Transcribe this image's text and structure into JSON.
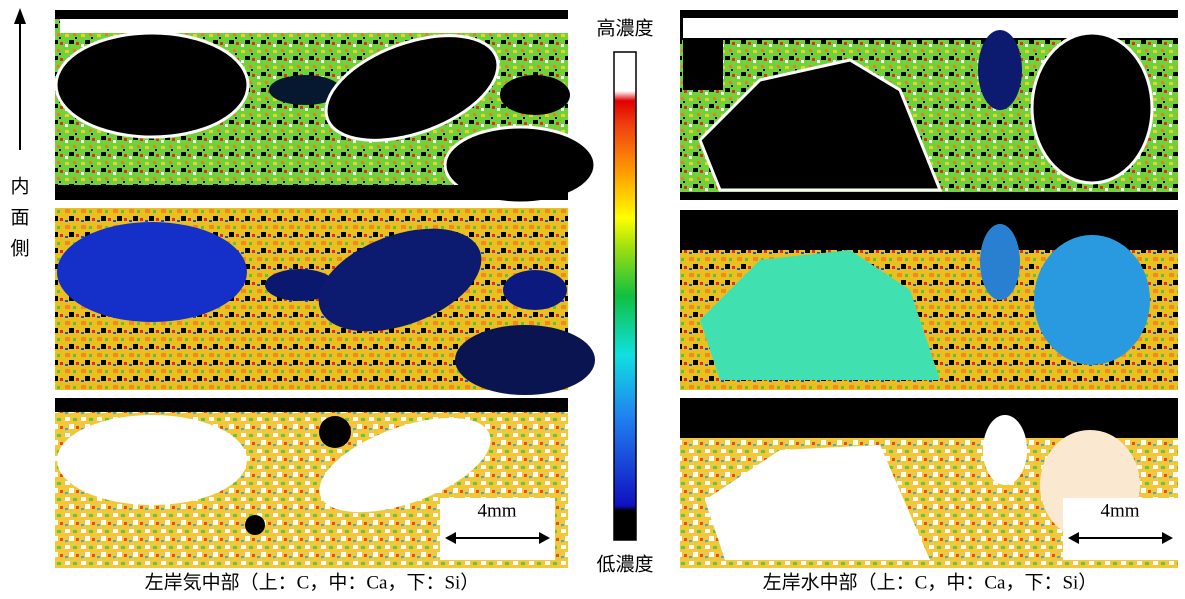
{
  "side_label": [
    "内",
    "面",
    "側"
  ],
  "color_scale": {
    "high": "高濃度",
    "low": "低濃度"
  },
  "left_figure": {
    "caption": "左岸気中部（上：C，中：Ca，下：Si）",
    "scale_bar": "4mm"
  },
  "right_figure": {
    "caption": "左岸水中部（上：C，中：Ca，下：Si）",
    "scale_bar": "4mm"
  }
}
